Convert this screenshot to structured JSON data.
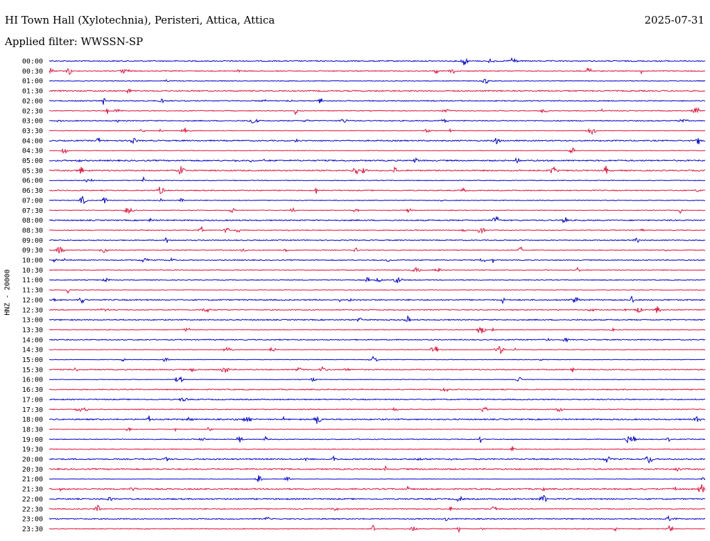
{
  "header": {
    "station": "HI Town Hall (Xylotechnia), Peristeri, Attica, Attica",
    "date": "2025-07-31",
    "filter": "Applied filter: WWSSN-SP"
  },
  "chart_data": {
    "type": "line",
    "title": "HI Town Hall (Xylotechnia), Peristeri, Attica, Attica",
    "ylabel": "HNZ - 20000",
    "xlabel": "",
    "grid": false,
    "row_colors": [
      "#0000cc",
      "#e0103a"
    ],
    "rows": [
      "00:00",
      "00:30",
      "01:00",
      "01:30",
      "02:00",
      "02:30",
      "03:00",
      "03:30",
      "04:00",
      "04:30",
      "05:00",
      "05:30",
      "06:00",
      "06:30",
      "07:00",
      "07:30",
      "08:00",
      "08:30",
      "09:00",
      "09:30",
      "10:00",
      "10:30",
      "11:00",
      "11:30",
      "12:00",
      "12:30",
      "13:00",
      "13:30",
      "14:00",
      "14:30",
      "15:00",
      "15:30",
      "16:00",
      "16:30",
      "17:00",
      "17:30",
      "18:00",
      "18:30",
      "19:00",
      "19:30",
      "20:00",
      "20:30",
      "21:00",
      "21:30",
      "22:00",
      "22:30",
      "23:00",
      "23:30"
    ]
  }
}
